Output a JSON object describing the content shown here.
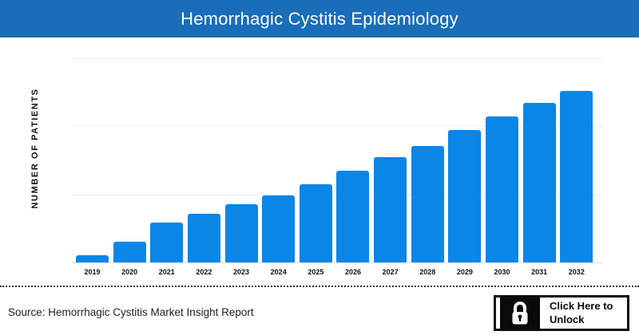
{
  "header": {
    "title": "Hemorrhagic Cystitis Epidemiology",
    "bg_color": "#1a6db8",
    "text_color": "#ffffff"
  },
  "chart_data": {
    "type": "bar",
    "title": "Hemorrhagic Cystitis Epidemiology",
    "categories": [
      "2019",
      "2020",
      "2021",
      "2022",
      "2023",
      "2024",
      "2025",
      "2026",
      "2027",
      "2028",
      "2029",
      "2030",
      "2031",
      "2032"
    ],
    "values": [
      9,
      26,
      50,
      61,
      73,
      84,
      98,
      115,
      132,
      146,
      166,
      183,
      200,
      215
    ],
    "values_note": "y-axis shows no numeric tick labels; values are relative bar heights estimated from pixels (tallest bar = 215 units)",
    "xlabel": "",
    "ylabel": "NUMBER OF PATIENTS",
    "ylim": [
      0,
      270
    ],
    "gridline_step": 85.3,
    "gridline_count": 3,
    "bar_color": "#0a86e6",
    "legend": false,
    "grid": "horizontal only, unlabeled"
  },
  "footer": {
    "source_text": "Source: Hemorrhagic Cystitis Market Insight Report",
    "unlock_button": {
      "line1": "Click Here to",
      "line2": "Unlock",
      "icon": "lock-icon"
    }
  }
}
